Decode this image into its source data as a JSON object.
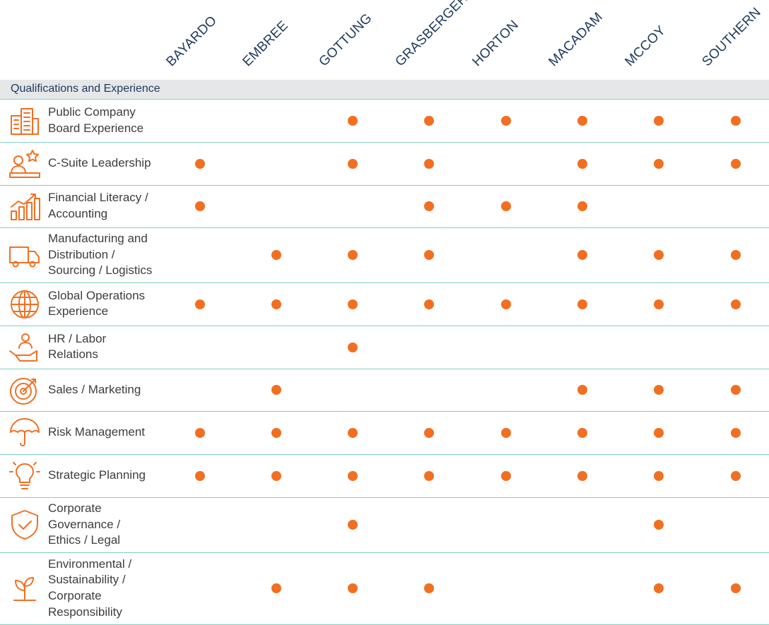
{
  "directors": [
    "BAYARDO",
    "EMBREE",
    "GOTTUNG",
    "GRASBERGER",
    "HORTON",
    "MACADAM",
    "MCCOY",
    "SOUTHERN"
  ],
  "section_title": "Qualifications and Experience",
  "accent_color": "#f26f21",
  "rows": [
    {
      "label": "Public Company\nBoard Experience",
      "icon": "buildings-icon",
      "dots": [
        0,
        0,
        1,
        1,
        1,
        1,
        1,
        1
      ]
    },
    {
      "label": "C-Suite Leadership",
      "icon": "leader-star-icon",
      "dots": [
        1,
        0,
        1,
        1,
        0,
        1,
        1,
        1
      ]
    },
    {
      "label": "Financial Literacy /\nAccounting",
      "icon": "growth-chart-icon",
      "dots": [
        1,
        0,
        0,
        1,
        1,
        1,
        0,
        0
      ]
    },
    {
      "label": "Manufacturing and\nDistribution /\nSourcing / Logistics",
      "icon": "truck-icon",
      "dots": [
        0,
        1,
        1,
        1,
        0,
        1,
        1,
        1
      ]
    },
    {
      "label": "Global Operations\nExperience",
      "icon": "globe-icon",
      "dots": [
        1,
        1,
        1,
        1,
        1,
        1,
        1,
        1
      ]
    },
    {
      "label": "HR / Labor\nRelations",
      "icon": "hand-person-icon",
      "dots": [
        0,
        0,
        1,
        0,
        0,
        0,
        0,
        0
      ]
    },
    {
      "label": "Sales / Marketing",
      "icon": "target-icon",
      "dots": [
        0,
        1,
        0,
        0,
        0,
        1,
        1,
        1
      ]
    },
    {
      "label": "Risk Management",
      "icon": "umbrella-icon",
      "dots": [
        1,
        1,
        1,
        1,
        1,
        1,
        1,
        1
      ]
    },
    {
      "label": "Strategic Planning",
      "icon": "lightbulb-icon",
      "dots": [
        1,
        1,
        1,
        1,
        1,
        1,
        1,
        1
      ]
    },
    {
      "label": "Corporate\nGovernance /\nEthics / Legal",
      "icon": "shield-check-icon",
      "dots": [
        0,
        0,
        1,
        0,
        0,
        0,
        1,
        0
      ]
    },
    {
      "label": "Environmental /\nSustainability /\nCorporate\nResponsibility",
      "icon": "plant-icon",
      "dots": [
        0,
        1,
        1,
        1,
        0,
        0,
        1,
        1
      ]
    }
  ]
}
